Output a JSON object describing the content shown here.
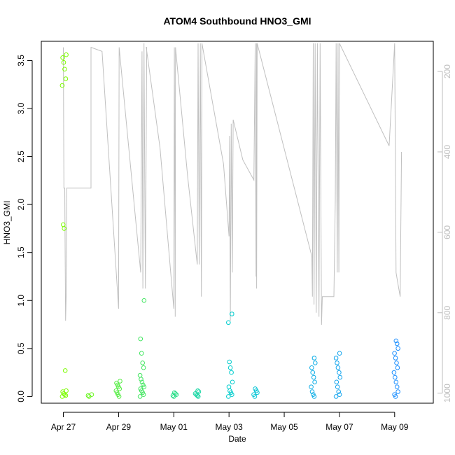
{
  "chart_data": {
    "type": "scatter",
    "title": "ATOM4 Southbound HNO3_GMI",
    "xlabel": "Date",
    "ylabel": "HNO3_GMI",
    "x_ticks": [
      "Apr 27",
      "Apr 29",
      "May 01",
      "May 03",
      "May 05",
      "May 07",
      "May 09"
    ],
    "x_tick_days": [
      0,
      2,
      4,
      6,
      8,
      10,
      12
    ],
    "y_ticks": [
      "0.0",
      "0.5",
      "1.0",
      "1.5",
      "2.0",
      "2.5",
      "3.0",
      "3.5"
    ],
    "y_tick_values": [
      0,
      0.5,
      1.0,
      1.5,
      2.0,
      2.5,
      3.0,
      3.5
    ],
    "y_right_ticks": [
      "200",
      "400",
      "600",
      "800",
      "1000"
    ],
    "y_right_tick_values": [
      200,
      400,
      600,
      800,
      1000
    ],
    "xlim_days": [
      -0.8,
      13.4
    ],
    "ylim": [
      -0.07,
      3.7
    ],
    "y_right_lim": [
      1025,
      125
    ],
    "point_color_range": [
      "#7CFC00",
      "#00CDCD",
      "#1E90FF"
    ],
    "line_color": "#c0c0c0",
    "series": [
      {
        "values": [
          {
            "x": 0.03,
            "y": [
              0.0,
              0.01,
              0.02,
              0.03,
              0.05,
              0.06,
              0.27,
              1.75,
              1.79,
              3.24,
              3.31,
              3.41,
              3.48,
              3.53,
              3.56
            ]
          },
          {
            "x": 0.95,
            "y": [
              0.0,
              0.01,
              0.02
            ]
          },
          {
            "x": 1.98,
            "y": [
              0.0,
              0.02,
              0.04,
              0.06,
              0.08,
              0.1,
              0.12,
              0.14,
              0.16
            ]
          },
          {
            "x": 2.85,
            "y": [
              0.0,
              0.02,
              0.04,
              0.06,
              0.08,
              0.1,
              0.12,
              0.15,
              0.18,
              0.22,
              0.3,
              0.35,
              0.45,
              0.6,
              1.0
            ]
          },
          {
            "x": 4.02,
            "y": [
              0.0,
              0.01,
              0.02,
              0.03,
              0.04
            ]
          },
          {
            "x": 4.85,
            "y": [
              0.0,
              0.01,
              0.02,
              0.03,
              0.05,
              0.06
            ]
          },
          {
            "x": 6.05,
            "y": [
              0.0,
              0.02,
              0.04,
              0.06,
              0.1,
              0.15,
              0.25,
              0.3,
              0.36,
              0.77,
              0.86
            ]
          },
          {
            "x": 6.95,
            "y": [
              0.0,
              0.02,
              0.04,
              0.06,
              0.08
            ]
          },
          {
            "x": 9.05,
            "y": [
              0.0,
              0.02,
              0.05,
              0.1,
              0.15,
              0.2,
              0.25,
              0.3,
              0.35,
              0.4
            ]
          },
          {
            "x": 9.95,
            "y": [
              0.0,
              0.02,
              0.05,
              0.1,
              0.15,
              0.2,
              0.25,
              0.3,
              0.35,
              0.4,
              0.45
            ]
          },
          {
            "x": 12.05,
            "y": [
              0.0,
              0.02,
              0.05,
              0.1,
              0.15,
              0.2,
              0.25,
              0.3,
              0.35,
              0.4,
              0.45,
              0.5,
              0.55,
              0.58
            ]
          }
        ]
      }
    ],
    "pressure_trace": [
      [
        0.0,
        140
      ],
      [
        0.02,
        490
      ],
      [
        0.05,
        490
      ],
      [
        0.08,
        820
      ],
      [
        0.1,
        760
      ],
      [
        0.12,
        490
      ],
      [
        1.0,
        490
      ],
      [
        1.0,
        140
      ],
      [
        1.0,
        140
      ],
      [
        1.4,
        150
      ],
      [
        2.0,
        790
      ],
      [
        2.02,
        140
      ],
      [
        2.8,
        700
      ],
      [
        2.85,
        150
      ],
      [
        2.88,
        740
      ],
      [
        2.92,
        130
      ],
      [
        2.97,
        740
      ],
      [
        3.02,
        140
      ],
      [
        3.0,
        140
      ],
      [
        3.5,
        390
      ],
      [
        4.0,
        790
      ],
      [
        4.02,
        140
      ],
      [
        4.05,
        810
      ],
      [
        4.06,
        140
      ],
      [
        4.5,
        460
      ],
      [
        4.85,
        680
      ],
      [
        4.88,
        130
      ],
      [
        4.92,
        680
      ],
      [
        4.96,
        130
      ],
      [
        5.0,
        760
      ],
      [
        5.02,
        130
      ],
      [
        5.8,
        430
      ],
      [
        6.0,
        610
      ],
      [
        6.02,
        360
      ],
      [
        6.05,
        820
      ],
      [
        6.08,
        330
      ],
      [
        6.12,
        700
      ],
      [
        6.15,
        320
      ],
      [
        6.5,
        420
      ],
      [
        6.9,
        470
      ],
      [
        6.95,
        130
      ],
      [
        6.98,
        710
      ],
      [
        7.0,
        130
      ],
      [
        7.0,
        740
      ],
      [
        7.02,
        130
      ],
      [
        9.0,
        660
      ],
      [
        9.02,
        760
      ],
      [
        9.05,
        130
      ],
      [
        9.08,
        780
      ],
      [
        9.12,
        130
      ],
      [
        9.16,
        800
      ],
      [
        9.2,
        130
      ],
      [
        9.26,
        810
      ],
      [
        9.3,
        130
      ],
      [
        9.35,
        830
      ],
      [
        9.38,
        760
      ],
      [
        9.8,
        760
      ],
      [
        9.85,
        520
      ],
      [
        9.88,
        130
      ],
      [
        9.92,
        700
      ],
      [
        9.95,
        130
      ],
      [
        9.98,
        700
      ],
      [
        10.0,
        130
      ],
      [
        11.8,
        385
      ],
      [
        12.0,
        130
      ],
      [
        12.05,
        700
      ],
      [
        12.1,
        720
      ],
      [
        12.15,
        740
      ],
      [
        12.2,
        760
      ],
      [
        12.25,
        400
      ]
    ]
  }
}
